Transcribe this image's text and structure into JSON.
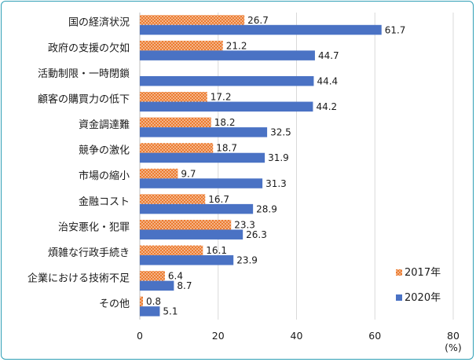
{
  "chart_data": {
    "type": "bar",
    "orientation": "horizontal",
    "title": "",
    "xlabel": "(%)",
    "ylabel": "",
    "xlim": [
      0,
      80
    ],
    "xticks": [
      "0",
      "20",
      "40",
      "60",
      "80"
    ],
    "categories": [
      "国の経済状況",
      "政府の支援の欠如",
      "活動制限・一時閉鎖",
      "顧客の購買力の低下",
      "資金調達難",
      "競争の激化",
      "市場の縮小",
      "金融コスト",
      "治安悪化・犯罪",
      "煩雑な行政手続き",
      "企業における技術不足",
      "その他"
    ],
    "series": [
      {
        "name": "2017年",
        "color": "#ec7c30",
        "pattern": "dotted",
        "values": [
          26.7,
          21.2,
          null,
          17.2,
          18.2,
          18.7,
          9.7,
          16.7,
          23.3,
          16.1,
          6.4,
          0.8
        ],
        "labels": [
          "26.7",
          "21.2",
          "",
          "17.2",
          "18.2",
          "18.7",
          "9.7",
          "16.7",
          "23.3",
          "16.1",
          "6.4",
          "0.8"
        ]
      },
      {
        "name": "2020年",
        "color": "#4a72c4",
        "pattern": "solid",
        "values": [
          61.7,
          44.7,
          44.4,
          44.2,
          32.5,
          31.9,
          31.3,
          28.9,
          26.3,
          23.9,
          8.7,
          5.1
        ],
        "labels": [
          "61.7",
          "44.7",
          "44.4",
          "44.2",
          "32.5",
          "31.9",
          "31.3",
          "28.9",
          "26.3",
          "23.9",
          "8.7",
          "5.1"
        ]
      }
    ],
    "legend_position": "bottom-right"
  }
}
